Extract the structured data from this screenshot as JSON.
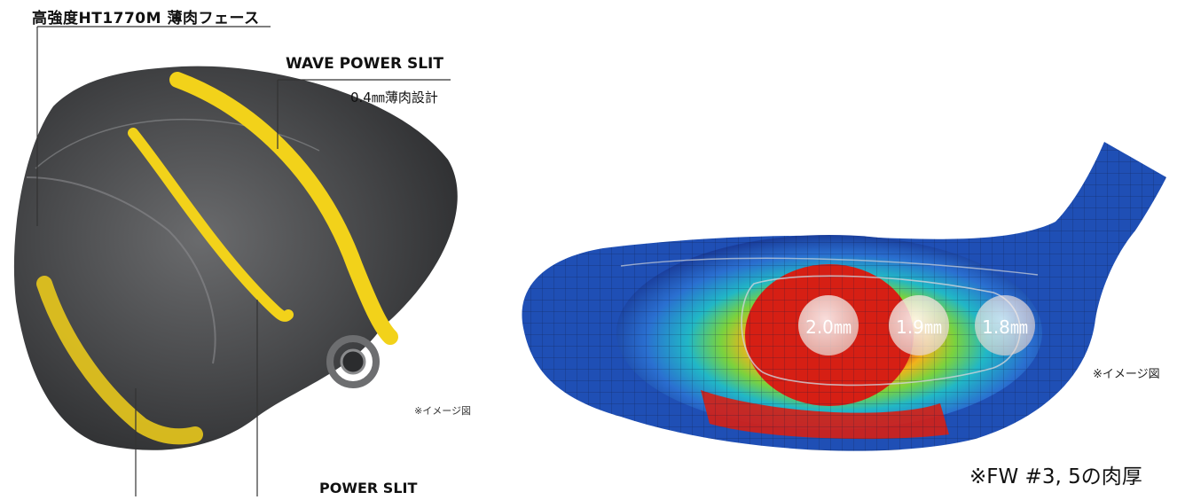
{
  "labels": {
    "face": "高強度HT1770M 薄肉フェース",
    "wave_slit": "WAVE POWER SLIT",
    "thin_design": "0.4㎜薄肉設計",
    "power_slit": "POWER SLIT",
    "image_note_left": "※イメージ図",
    "image_note_right": "※イメージ図",
    "fw_note": "※FW #3, 5の肉厚"
  },
  "thickness": [
    "2.0㎜",
    "1.9㎜",
    "1.8㎜"
  ],
  "colors": {
    "slit_yellow": "#f2d21a",
    "head_dark": "#3a3b3d",
    "fem_blue": "#1f4fb5",
    "fem_red": "#d61f14"
  }
}
